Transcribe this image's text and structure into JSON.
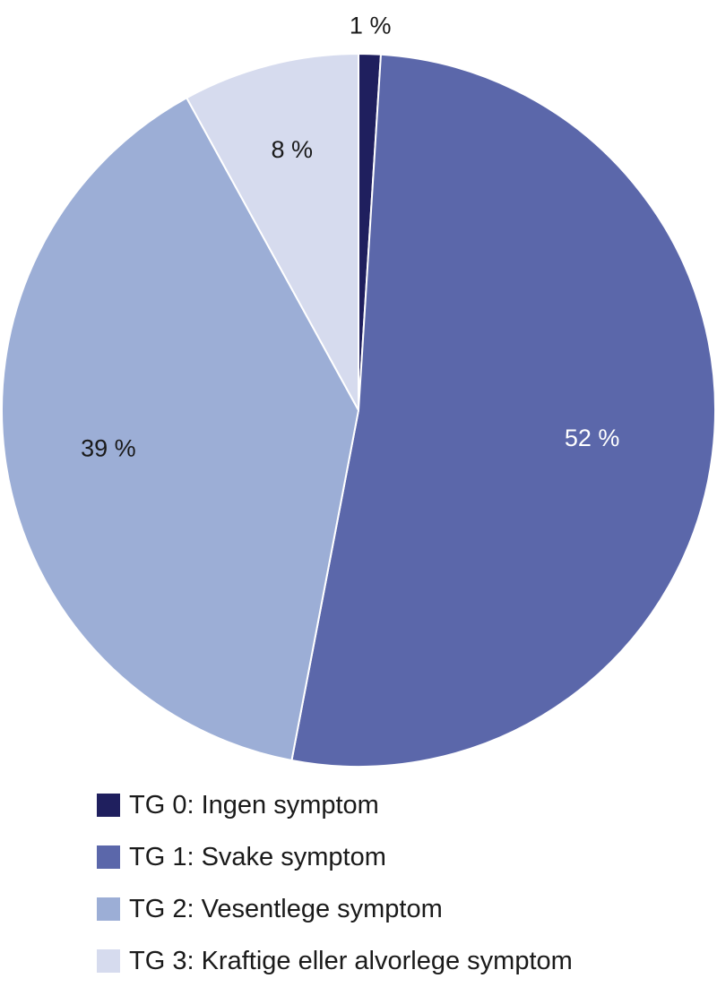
{
  "chart_data": {
    "type": "pie",
    "slices": [
      {
        "name": "TG 0: Ingen symptom",
        "value": 1,
        "label": "1 %",
        "color": "#1f1f5e",
        "label_color": "#1a1a1a"
      },
      {
        "name": "TG 1: Svake symptom",
        "value": 52,
        "label": "52 %",
        "color": "#5b67aa",
        "label_color": "#ffffff"
      },
      {
        "name": "TG 2: Vesentlege symptom",
        "value": 39,
        "label": "39 %",
        "color": "#9caed6",
        "label_color": "#1a1a1a"
      },
      {
        "name": "TG 3: Kraftige eller alvorlege symptom",
        "value": 8,
        "label": "8 %",
        "color": "#d6dbee",
        "label_color": "#1a1a1a"
      }
    ],
    "legend_position": "bottom-left"
  }
}
